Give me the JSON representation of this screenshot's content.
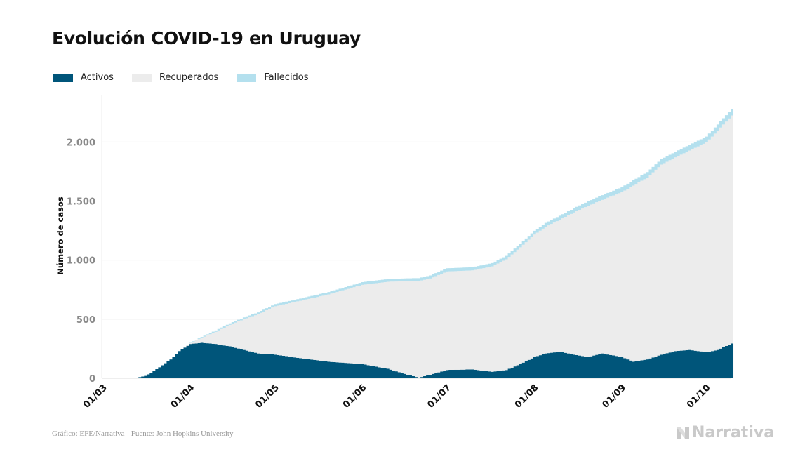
{
  "title": "Evolución COVID-19 en Uruguay",
  "colors": {
    "activos": "#00557a",
    "recuperados": "#ececec",
    "fallecidos": "#b4e0ee",
    "grid": "#ececec",
    "tick_text": "#8a8a8a"
  },
  "chart_data": {
    "type": "area",
    "stacked": true,
    "title": "Evolución COVID-19 en Uruguay",
    "xlabel": "",
    "ylabel": "Número de casos",
    "ylim": [
      0,
      2400
    ],
    "yticks": [
      0,
      500,
      1000,
      1500,
      2000
    ],
    "ytick_labels": [
      "0",
      "500",
      "1.000",
      "1.500",
      "2.000"
    ],
    "xticks": [
      "2020-03-01",
      "2020-04-01",
      "2020-05-01",
      "2020-06-01",
      "2020-07-01",
      "2020-08-01",
      "2020-09-01",
      "2020-10-01"
    ],
    "xtick_labels": [
      "01/03",
      "01/04",
      "01/05",
      "01/06",
      "01/07",
      "01/08",
      "01/09",
      "01/10"
    ],
    "xlim": [
      "2020-03-01",
      "2020-10-10"
    ],
    "grid": "horizontal",
    "legend_position": "top-left",
    "series": [
      {
        "name": "Activos",
        "x": [
          "2020-03-13",
          "2020-03-16",
          "2020-03-19",
          "2020-03-22",
          "2020-03-25",
          "2020-03-28",
          "2020-04-01",
          "2020-04-05",
          "2020-04-10",
          "2020-04-15",
          "2020-04-20",
          "2020-04-25",
          "2020-05-01",
          "2020-05-10",
          "2020-05-20",
          "2020-06-01",
          "2020-06-10",
          "2020-06-17",
          "2020-06-21",
          "2020-06-25",
          "2020-07-01",
          "2020-07-10",
          "2020-07-17",
          "2020-07-22",
          "2020-07-27",
          "2020-08-01",
          "2020-08-05",
          "2020-08-10",
          "2020-08-15",
          "2020-08-20",
          "2020-08-25",
          "2020-09-01",
          "2020-09-05",
          "2020-09-10",
          "2020-09-15",
          "2020-09-20",
          "2020-09-25",
          "2020-10-01",
          "2020-10-05",
          "2020-10-10"
        ],
        "values": [
          5,
          20,
          60,
          110,
          160,
          230,
          290,
          300,
          290,
          270,
          240,
          210,
          200,
          170,
          140,
          120,
          80,
          30,
          5,
          30,
          70,
          75,
          55,
          70,
          120,
          180,
          210,
          225,
          200,
          180,
          210,
          180,
          140,
          160,
          200,
          230,
          240,
          220,
          240,
          295
        ]
      },
      {
        "name": "Recuperados",
        "x": [
          "2020-03-13",
          "2020-03-16",
          "2020-03-19",
          "2020-03-22",
          "2020-03-25",
          "2020-03-28",
          "2020-04-01",
          "2020-04-05",
          "2020-04-10",
          "2020-04-15",
          "2020-04-20",
          "2020-04-25",
          "2020-05-01",
          "2020-05-10",
          "2020-05-20",
          "2020-06-01",
          "2020-06-10",
          "2020-06-17",
          "2020-06-21",
          "2020-06-25",
          "2020-07-01",
          "2020-07-10",
          "2020-07-17",
          "2020-07-22",
          "2020-07-27",
          "2020-08-01",
          "2020-08-05",
          "2020-08-10",
          "2020-08-15",
          "2020-08-20",
          "2020-08-25",
          "2020-09-01",
          "2020-09-05",
          "2020-09-10",
          "2020-09-15",
          "2020-09-20",
          "2020-09-25",
          "2020-10-01",
          "2020-10-05",
          "2020-10-10"
        ],
        "values": [
          0,
          0,
          0,
          0,
          0,
          0,
          7,
          42,
          103,
          182,
          260,
          331,
          410,
          486,
          570,
          671,
          737,
          792,
          817,
          814,
          834,
          838,
          892,
          937,
          989,
          1036,
          1072,
          1117,
          1203,
          1280,
          1300,
          1395,
          1491,
          1539,
          1609,
          1640,
          1688,
          1776,
          1856,
          1930
        ]
      },
      {
        "name": "Fallecidos",
        "x": [
          "2020-03-13",
          "2020-03-16",
          "2020-03-19",
          "2020-03-22",
          "2020-03-25",
          "2020-03-28",
          "2020-04-01",
          "2020-04-05",
          "2020-04-10",
          "2020-04-15",
          "2020-04-20",
          "2020-04-25",
          "2020-05-01",
          "2020-05-10",
          "2020-05-20",
          "2020-06-01",
          "2020-06-10",
          "2020-06-17",
          "2020-06-21",
          "2020-06-25",
          "2020-07-01",
          "2020-07-10",
          "2020-07-17",
          "2020-07-22",
          "2020-07-27",
          "2020-08-01",
          "2020-08-05",
          "2020-08-10",
          "2020-08-15",
          "2020-08-20",
          "2020-08-25",
          "2020-09-01",
          "2020-09-05",
          "2020-09-10",
          "2020-09-15",
          "2020-09-20",
          "2020-09-25",
          "2020-10-01",
          "2020-10-05",
          "2020-10-10"
        ],
        "values": [
          0,
          0,
          0,
          0,
          1,
          1,
          3,
          8,
          12,
          13,
          15,
          17,
          18,
          19,
          20,
          23,
          23,
          24,
          25,
          26,
          27,
          27,
          28,
          29,
          31,
          32,
          33,
          34,
          36,
          38,
          40,
          42,
          44,
          46,
          46,
          47,
          48,
          50,
          52,
          55
        ]
      }
    ]
  },
  "footer": {
    "source": "Gráfico: EFE/Narrativa - Fuente: John Hopkins University",
    "brand": "Narrativa"
  }
}
